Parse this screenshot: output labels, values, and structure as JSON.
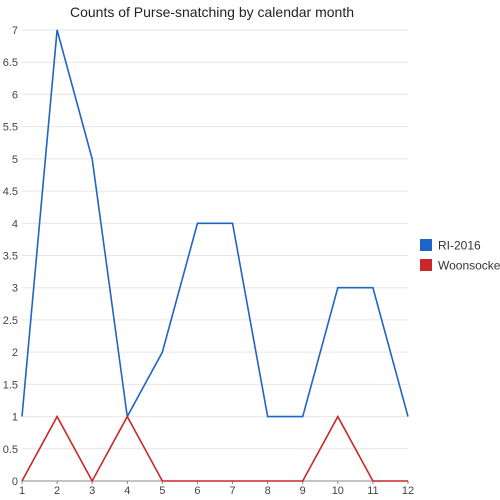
{
  "chart_data": {
    "type": "line",
    "title": "Counts of Purse-snatching by calendar month",
    "xlabel": "",
    "ylabel": "",
    "x": [
      1,
      2,
      3,
      4,
      5,
      6,
      7,
      8,
      9,
      10,
      11,
      12
    ],
    "xlim": [
      1,
      12
    ],
    "ylim": [
      0,
      7
    ],
    "y_ticks": [
      0,
      0.5,
      1,
      1.5,
      2,
      2.5,
      3,
      3.5,
      4,
      4.5,
      5,
      5.5,
      6,
      6.5,
      7
    ],
    "grid": true,
    "legend_position": "right",
    "series": [
      {
        "name": "RI-2016",
        "color": "#1f64c8",
        "values": [
          1,
          7,
          5,
          1,
          2,
          4,
          4,
          1,
          1,
          3,
          3,
          1
        ]
      },
      {
        "name": "Woonsocket",
        "color": "#c82828",
        "values": [
          0,
          1,
          0,
          1,
          0,
          0,
          0,
          0,
          0,
          1,
          0,
          0
        ]
      }
    ]
  }
}
